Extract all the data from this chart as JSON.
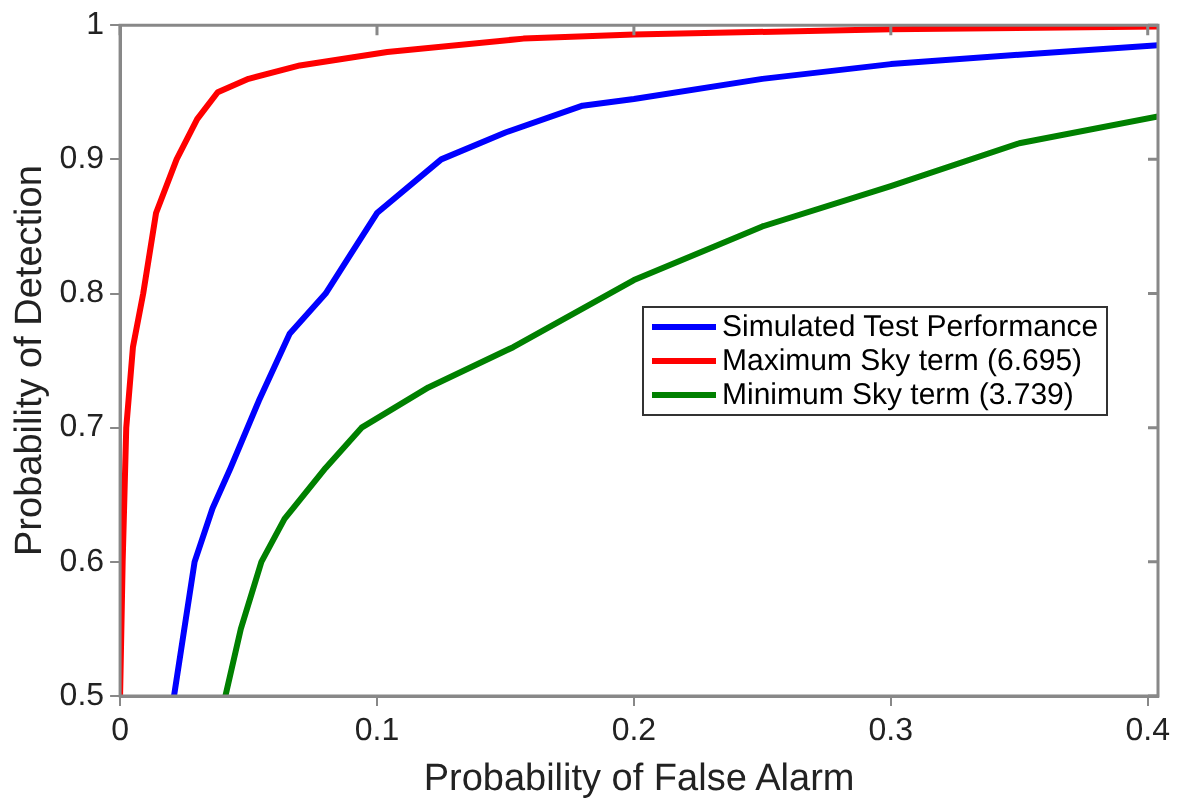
{
  "chart_data": {
    "type": "line",
    "xlabel": "Probability of False Alarm",
    "ylabel": "Probability of Detection",
    "xlim": [
      0,
      0.404
    ],
    "ylim": [
      0.5,
      1
    ],
    "xticks": [
      0,
      0.1,
      0.2,
      0.3,
      0.4
    ],
    "yticks": [
      0.5,
      0.6,
      0.7,
      0.8,
      0.9,
      1
    ],
    "grid": false,
    "legend": "center right",
    "marker": "none",
    "line_style": "solid",
    "series": [
      {
        "name": "Simulated Test Performance",
        "color": "#0000ff",
        "x": [
          0.021,
          0.025,
          0.029,
          0.036,
          0.043,
          0.054,
          0.066,
          0.08,
          0.1,
          0.125,
          0.15,
          0.18,
          0.2,
          0.25,
          0.3,
          0.35,
          0.404
        ],
        "values": [
          0.5,
          0.55,
          0.6,
          0.64,
          0.67,
          0.72,
          0.77,
          0.8,
          0.86,
          0.9,
          0.92,
          0.94,
          0.945,
          0.96,
          0.971,
          0.978,
          0.985
        ]
      },
      {
        "name": "Maximum Sky term (6.695)",
        "color": "#ff0000",
        "x": [
          0,
          0.001,
          0.0024,
          0.005,
          0.009,
          0.014,
          0.022,
          0.03,
          0.038,
          0.05,
          0.07,
          0.104,
          0.157,
          0.2,
          0.3,
          0.404
        ],
        "values": [
          0.5,
          0.6,
          0.7,
          0.76,
          0.8,
          0.86,
          0.9,
          0.93,
          0.95,
          0.96,
          0.97,
          0.98,
          0.99,
          0.993,
          0.997,
          0.999
        ]
      },
      {
        "name": "Minimum Sky term (3.739)",
        "color": "#008000",
        "x": [
          0.041,
          0.047,
          0.055,
          0.064,
          0.08,
          0.094,
          0.12,
          0.153,
          0.2,
          0.25,
          0.3,
          0.35,
          0.404
        ],
        "values": [
          0.5,
          0.55,
          0.6,
          0.632,
          0.67,
          0.7,
          0.73,
          0.76,
          0.81,
          0.85,
          0.88,
          0.912,
          0.932
        ]
      }
    ]
  }
}
